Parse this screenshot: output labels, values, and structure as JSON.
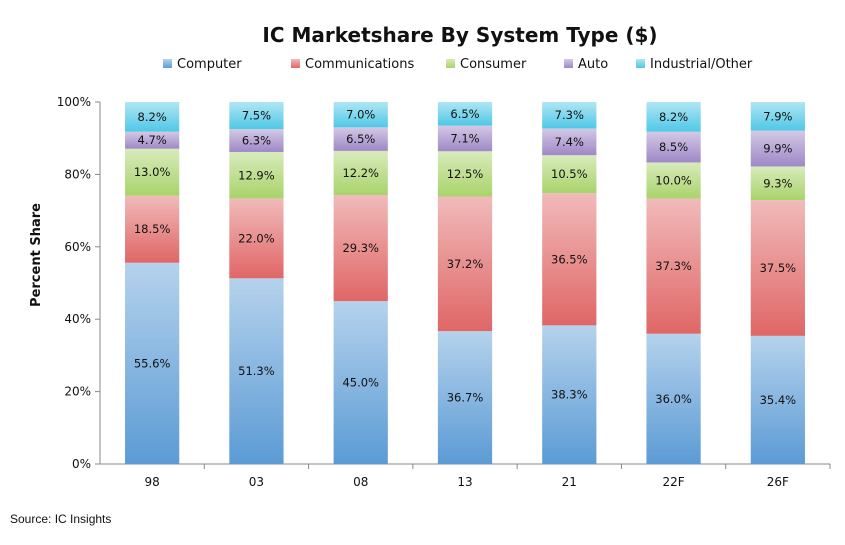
{
  "chart_data": {
    "type": "bar",
    "stacked": true,
    "title": "IC Marketshare By System Type ($)",
    "xlabel": "",
    "ylabel": "Percent Share",
    "categories": [
      "98",
      "03",
      "08",
      "13",
      "21",
      "22F",
      "26F"
    ],
    "ylim": [
      0,
      100
    ],
    "yticks": [
      "0%",
      "20%",
      "40%",
      "60%",
      "80%",
      "100%"
    ],
    "legend_position": "top",
    "grid": false,
    "series": [
      {
        "name": "Computer",
        "color": "#5B9BD5",
        "values": [
          55.6,
          51.3,
          45.0,
          36.7,
          38.3,
          36.0,
          35.4
        ],
        "labels": [
          "55.6%",
          "51.3%",
          "45.0%",
          "36.7%",
          "38.3%",
          "36.0%",
          "35.4%"
        ]
      },
      {
        "name": "Communications",
        "color": "#E06666",
        "values": [
          18.5,
          22.0,
          29.3,
          37.2,
          36.5,
          37.3,
          37.5
        ],
        "labels": [
          "18.5%",
          "22.0%",
          "29.3%",
          "37.2%",
          "36.5%",
          "37.3%",
          "37.5%"
        ]
      },
      {
        "name": "Consumer",
        "color": "#A9D36A",
        "values": [
          13.0,
          12.9,
          12.2,
          12.5,
          10.5,
          10.0,
          9.3
        ],
        "labels": [
          "13.0%",
          "12.9%",
          "12.2%",
          "12.5%",
          "10.5%",
          "10.0%",
          "9.3%"
        ]
      },
      {
        "name": "Auto",
        "color": "#9E88C6",
        "values": [
          4.7,
          6.3,
          6.5,
          7.1,
          7.4,
          8.5,
          9.9
        ],
        "labels": [
          "4.7%",
          "6.3%",
          "6.5%",
          "7.1%",
          "7.4%",
          "8.5%",
          "9.9%"
        ]
      },
      {
        "name": "Industrial/Other",
        "color": "#4FC8E6",
        "values": [
          8.2,
          7.5,
          7.0,
          6.5,
          7.3,
          8.2,
          7.9
        ],
        "labels": [
          "8.2%",
          "7.5%",
          "7.0%",
          "6.5%",
          "7.3%",
          "8.2%",
          "7.9%"
        ]
      }
    ]
  },
  "source": "Source: IC Insights"
}
